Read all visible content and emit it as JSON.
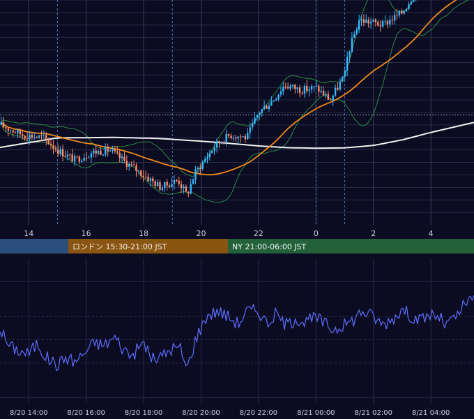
{
  "colors": {
    "background": "#0b0b22",
    "grid": "#272c48",
    "vertical_grid": "#3a3d5a",
    "session_divider": "#4f79b8",
    "candle_up": "#3ab8ff",
    "candle_down": "#ff8a66",
    "bollinger": "#2a8a45",
    "ma_short": "#f08a1c",
    "ma_long": "#f2f2f2",
    "indicator_line": "#5f6fff",
    "axis_text": "#cfd0dc",
    "session_tokyo": "#2c4e7c",
    "session_london": "#8a5510",
    "session_ny": "#23613a"
  },
  "price_axis": {
    "x_ticks": [
      "14",
      "16",
      "18",
      "20",
      "22",
      "0",
      "2",
      "4"
    ]
  },
  "sessions": [
    {
      "label": ""
    },
    {
      "label": "ロンドン 15:30-21:00 JST"
    },
    {
      "label": "NY 21:00-06:00 JST"
    }
  ],
  "indicator_axis": {
    "x_ticks": [
      "8/20 14:00",
      "8/20 16:00",
      "8/20 18:00",
      "8/20 20:00",
      "8/20 22:00",
      "8/21 00:00",
      "8/21 02:00",
      "8/21 04:00"
    ]
  },
  "chart_data": [
    {
      "type": "candlestick",
      "time_range": [
        "8/20 13:00",
        "8/21 05:30"
      ],
      "x_ticks": [
        "14",
        "16",
        "18",
        "20",
        "22",
        "0",
        "2",
        "4"
      ],
      "y_range": [
        10,
        100
      ],
      "price_shape": {
        "times": [
          13.0,
          13.8,
          14.5,
          15.0,
          15.6,
          16.2,
          16.8,
          17.5,
          18.0,
          18.6,
          19.2,
          19.5,
          19.8,
          20.5,
          21.0,
          21.6,
          22.0,
          22.5,
          22.9,
          23.5,
          24.0,
          24.5,
          25.0,
          25.1,
          25.5,
          26.0,
          26.3,
          27.0,
          27.5,
          28.0,
          28.3,
          28.5,
          29.0,
          29.5
        ],
        "values": [
          50,
          46,
          45,
          40,
          36,
          39,
          40,
          34,
          30,
          25,
          28,
          22,
          31,
          42,
          46,
          45,
          55,
          60,
          66,
          64,
          65,
          60,
          70,
          78,
          92,
          91,
          90,
          95,
          104,
          106,
          103,
          114,
          118,
          121
        ]
      },
      "overlays": [
        "bollinger_bands",
        "moving_average_short",
        "moving_average_long"
      ],
      "ma_long": {
        "times": [
          13.0,
          15.0,
          17.0,
          18.5,
          20.0,
          21.0,
          22.0,
          23.0,
          24.0,
          25.0,
          26.0,
          27.0,
          28.0,
          29.5
        ],
        "values": [
          41,
          44.8,
          45,
          44.6,
          43.5,
          42.6,
          41.6,
          40.9,
          40.7,
          40.8,
          41.8,
          44,
          47,
          51
        ]
      },
      "reference_level": 54,
      "session_dividers": [
        "15:00",
        "19:00",
        "24:00",
        "25:00"
      ]
    },
    {
      "type": "line",
      "time_range": [
        "8/20 13:00",
        "8/21 05:30"
      ],
      "x_ticks": [
        "8/20 14:00",
        "8/20 16:00",
        "8/20 18:00",
        "8/20 20:00",
        "8/20 22:00",
        "8/21 00:00",
        "8/21 02:00",
        "8/21 04:00"
      ],
      "y_range": [
        -5,
        120
      ],
      "series": [
        {
          "name": "",
          "times": [
            13.0,
            13.3,
            13.7,
            14.0,
            14.3,
            14.6,
            15.0,
            15.3,
            15.6,
            16.0,
            16.3,
            16.6,
            17.0,
            17.3,
            17.6,
            18.0,
            18.3,
            18.6,
            19.0,
            19.3,
            19.5,
            19.8,
            20.2,
            20.6,
            21.0,
            21.3,
            21.6,
            22.0,
            22.3,
            22.6,
            23.0,
            23.3,
            23.6,
            24.0,
            24.3,
            24.6,
            25.0,
            25.3,
            25.6,
            26.0,
            26.3,
            26.6,
            27.0,
            27.3,
            27.6,
            28.0,
            28.3,
            28.5,
            28.8,
            29.2,
            29.5
          ],
          "values": [
            60,
            45,
            40,
            38,
            47,
            35,
            28,
            35,
            31,
            40,
            48,
            45,
            52,
            42,
            36,
            48,
            33,
            35,
            43,
            42,
            24,
            50,
            71,
            75,
            69,
            64,
            75,
            75,
            64,
            72,
            62,
            69,
            65,
            69,
            64,
            59,
            63,
            67,
            75,
            70,
            63,
            67,
            76,
            71,
            66,
            72,
            69,
            63,
            67,
            81,
            85
          ]
        }
      ]
    }
  ]
}
